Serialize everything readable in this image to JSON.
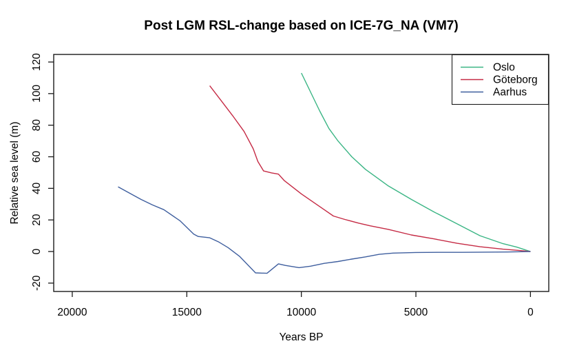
{
  "chart_data": {
    "type": "line",
    "title": "Post LGM RSL-change based on ICE-7G_NA (VM7)",
    "xlabel": "Years BP",
    "ylabel": "Relative sea level (m)",
    "grid": false,
    "legend_position": "top-right",
    "x_axis": {
      "ticks": [
        20000,
        15000,
        10000,
        5000,
        0
      ],
      "reversed": true,
      "range": [
        20810,
        -800
      ]
    },
    "y_axis": {
      "ticks": [
        -20,
        0,
        20,
        40,
        60,
        80,
        100,
        120
      ],
      "range": [
        -25.3,
        124.8
      ]
    },
    "series": [
      {
        "name": "Oslo",
        "color": "#3ab584",
        "points": [
          [
            10000,
            113
          ],
          [
            9600,
            101
          ],
          [
            9200,
            89
          ],
          [
            8800,
            78
          ],
          [
            8400,
            70
          ],
          [
            7800,
            60
          ],
          [
            7200,
            52
          ],
          [
            6200,
            41.5
          ],
          [
            5200,
            33
          ],
          [
            4200,
            25
          ],
          [
            3200,
            17.5
          ],
          [
            2200,
            10
          ],
          [
            1200,
            5
          ],
          [
            600,
            2.8
          ],
          [
            0,
            0
          ]
        ]
      },
      {
        "name": "Göteborg",
        "color": "#c52a44",
        "points": [
          [
            14000,
            105
          ],
          [
            13500,
            95.5
          ],
          [
            13000,
            86
          ],
          [
            12500,
            76
          ],
          [
            12100,
            65
          ],
          [
            11900,
            57
          ],
          [
            11650,
            51
          ],
          [
            11300,
            49.8
          ],
          [
            11000,
            49
          ],
          [
            10750,
            45
          ],
          [
            10400,
            41
          ],
          [
            10000,
            36.5
          ],
          [
            9650,
            33
          ],
          [
            9000,
            26.5
          ],
          [
            8600,
            22.5
          ],
          [
            8100,
            20.3
          ],
          [
            7500,
            18
          ],
          [
            7000,
            16.3
          ],
          [
            6200,
            14
          ],
          [
            5200,
            10.5
          ],
          [
            4200,
            8
          ],
          [
            3200,
            5.2
          ],
          [
            2200,
            3
          ],
          [
            1200,
            1.5
          ],
          [
            600,
            0.8
          ],
          [
            0,
            0
          ]
        ]
      },
      {
        "name": "Aarhus",
        "color": "#3e5e9e",
        "points": [
          [
            18000,
            41
          ],
          [
            17500,
            37
          ],
          [
            17000,
            33
          ],
          [
            16500,
            29.5
          ],
          [
            16000,
            26.5
          ],
          [
            15300,
            19.5
          ],
          [
            14700,
            11
          ],
          [
            14500,
            9.5
          ],
          [
            14000,
            8.7
          ],
          [
            13600,
            6
          ],
          [
            13200,
            2.5
          ],
          [
            12700,
            -3
          ],
          [
            12000,
            -13.5
          ],
          [
            11500,
            -13.8
          ],
          [
            11000,
            -7.8
          ],
          [
            10700,
            -8.8
          ],
          [
            10100,
            -10.2
          ],
          [
            9600,
            -9.3
          ],
          [
            9000,
            -7.5
          ],
          [
            8400,
            -6.3
          ],
          [
            7800,
            -4.8
          ],
          [
            7200,
            -3.4
          ],
          [
            6600,
            -1.8
          ],
          [
            6000,
            -1
          ],
          [
            5000,
            -0.6
          ],
          [
            4000,
            -0.5
          ],
          [
            3000,
            -0.5
          ],
          [
            2000,
            -0.4
          ],
          [
            1000,
            -0.3
          ],
          [
            0,
            0
          ]
        ]
      }
    ]
  }
}
